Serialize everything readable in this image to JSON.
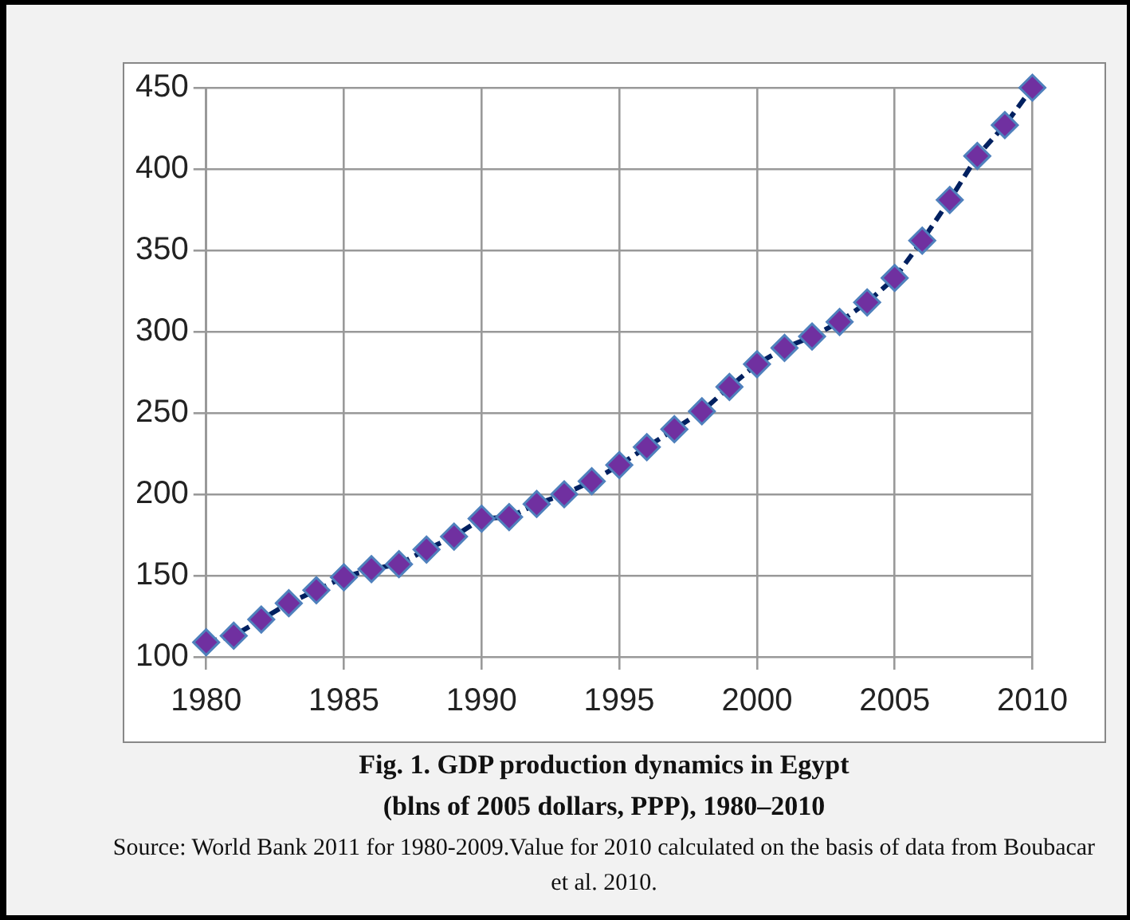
{
  "chart_data": {
    "type": "line",
    "title": "Fig. 1. GDP production dynamics in Egypt",
    "subtitle": "(blns of 2005 dollars, PPP), 1980–2010",
    "annotations": [
      "Source: World Bank 2011 for 1980-2009.Value for 2010 calculated on the basis of data from Boubacar et al. 2010."
    ],
    "x": [
      1980,
      1981,
      1982,
      1983,
      1984,
      1985,
      1986,
      1987,
      1988,
      1989,
      1990,
      1991,
      1992,
      1993,
      1994,
      1995,
      1996,
      1997,
      1998,
      1999,
      2000,
      2001,
      2002,
      2003,
      2004,
      2005,
      2006,
      2007,
      2008,
      2009,
      2010
    ],
    "series": [
      {
        "color": "#7030a0",
        "values": [
          109,
          113,
          123,
          133,
          141,
          149,
          154,
          157,
          166,
          174,
          185,
          186,
          194,
          200,
          208,
          218,
          229,
          240,
          251,
          266,
          280,
          290,
          297,
          306,
          318,
          333,
          356,
          381,
          408,
          427,
          450
        ]
      }
    ],
    "xlim": [
      1980,
      2010
    ],
    "xticks": [
      1980,
      1985,
      1990,
      1995,
      2000,
      2005,
      2010
    ],
    "ylim": [
      100,
      450
    ],
    "yticks": [
      100,
      150,
      200,
      250,
      300,
      350,
      400,
      450
    ],
    "grid": true,
    "legend": false,
    "marker": "diamond",
    "line_style": "dashed"
  }
}
